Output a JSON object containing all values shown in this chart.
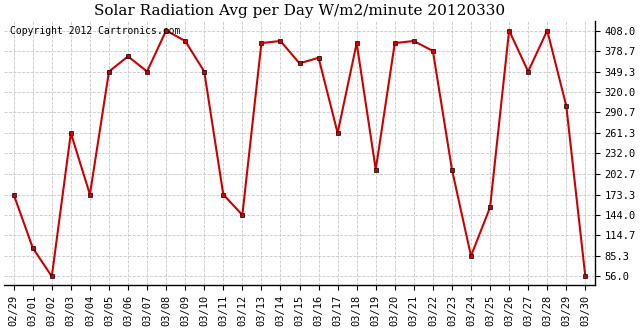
{
  "title": "Solar Radiation Avg per Day W/m2/minute 20120330",
  "copyright_text": "Copyright 2012 Cartronics.com",
  "x_labels": [
    "02/29",
    "03/01",
    "03/02",
    "03/03",
    "03/04",
    "03/05",
    "03/06",
    "03/07",
    "03/08",
    "03/09",
    "03/10",
    "03/11",
    "03/12",
    "03/13",
    "03/14",
    "03/15",
    "03/16",
    "03/17",
    "03/18",
    "03/19",
    "03/20",
    "03/21",
    "03/22",
    "03/23",
    "03/24",
    "03/25",
    "03/26",
    "03/27",
    "03/28",
    "03/29",
    "03/30"
  ],
  "y_values": [
    173.3,
    97.0,
    56.0,
    261.3,
    173.3,
    349.3,
    371.0,
    349.3,
    408.0,
    393.0,
    349.3,
    173.3,
    144.0,
    390.0,
    393.0,
    361.0,
    369.0,
    261.3,
    390.0,
    209.0,
    390.0,
    393.0,
    378.7,
    209.0,
    85.3,
    155.0,
    408.0,
    349.3,
    408.0,
    300.0,
    56.0
  ],
  "line_color": "#cc0000",
  "marker": "s",
  "marker_size": 3,
  "marker_color": "#cc0000",
  "background_color": "#ffffff",
  "plot_bg_color": "#ffffff",
  "grid_color": "#c8c8c8",
  "y_ticks": [
    56.0,
    85.3,
    114.7,
    144.0,
    173.3,
    202.7,
    232.0,
    261.3,
    290.7,
    320.0,
    349.3,
    378.7,
    408.0
  ],
  "ylim": [
    44,
    422
  ],
  "title_fontsize": 11,
  "axis_fontsize": 7.5,
  "copyright_fontsize": 7
}
